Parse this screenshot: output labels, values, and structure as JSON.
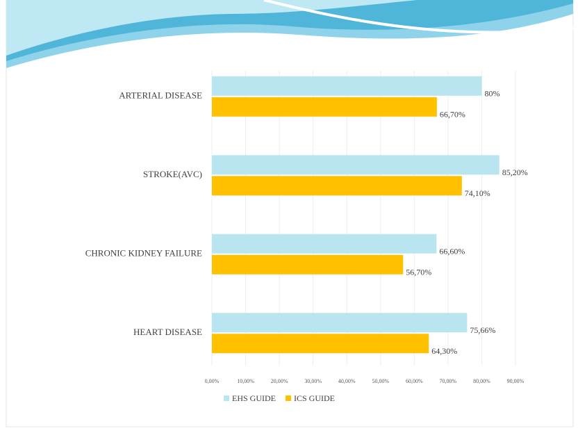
{
  "chart_data": {
    "type": "hbar",
    "categories": [
      "ARTERIAL DISEASE",
      "STROKE(AVC)",
      "CHRONIC KIDNEY FAILURE",
      "HEART DISEASE"
    ],
    "series": [
      {
        "name": "EHS GUIDE",
        "color": "#b8e5f0",
        "values": [
          80,
          85.2,
          66.6,
          75.66
        ],
        "value_labels": [
          "80%",
          "85,20%",
          "66,60%",
          "75,66%"
        ]
      },
      {
        "name": "ICS GUIDE",
        "color": "#ffc000",
        "values": [
          66.7,
          74.1,
          56.7,
          64.3
        ],
        "value_labels": [
          "66,70%",
          "74,10%",
          "56,70%",
          "64,30%"
        ]
      }
    ],
    "xlim": [
      0,
      90
    ],
    "xticks": [
      {
        "value": 0,
        "label": "0,00%"
      },
      {
        "value": 10,
        "label": "10,00%"
      },
      {
        "value": 20,
        "label": "20,00%"
      },
      {
        "value": 30,
        "label": "30,00%"
      },
      {
        "value": 40,
        "label": "40,00%"
      },
      {
        "value": 50,
        "label": "50,00%"
      },
      {
        "value": 60,
        "label": "60,00%"
      },
      {
        "value": 70,
        "label": "70,00%"
      },
      {
        "value": 80,
        "label": "80,00%"
      },
      {
        "value": 90,
        "label": "90,00%"
      }
    ],
    "grid": true,
    "legend": "bottom"
  }
}
